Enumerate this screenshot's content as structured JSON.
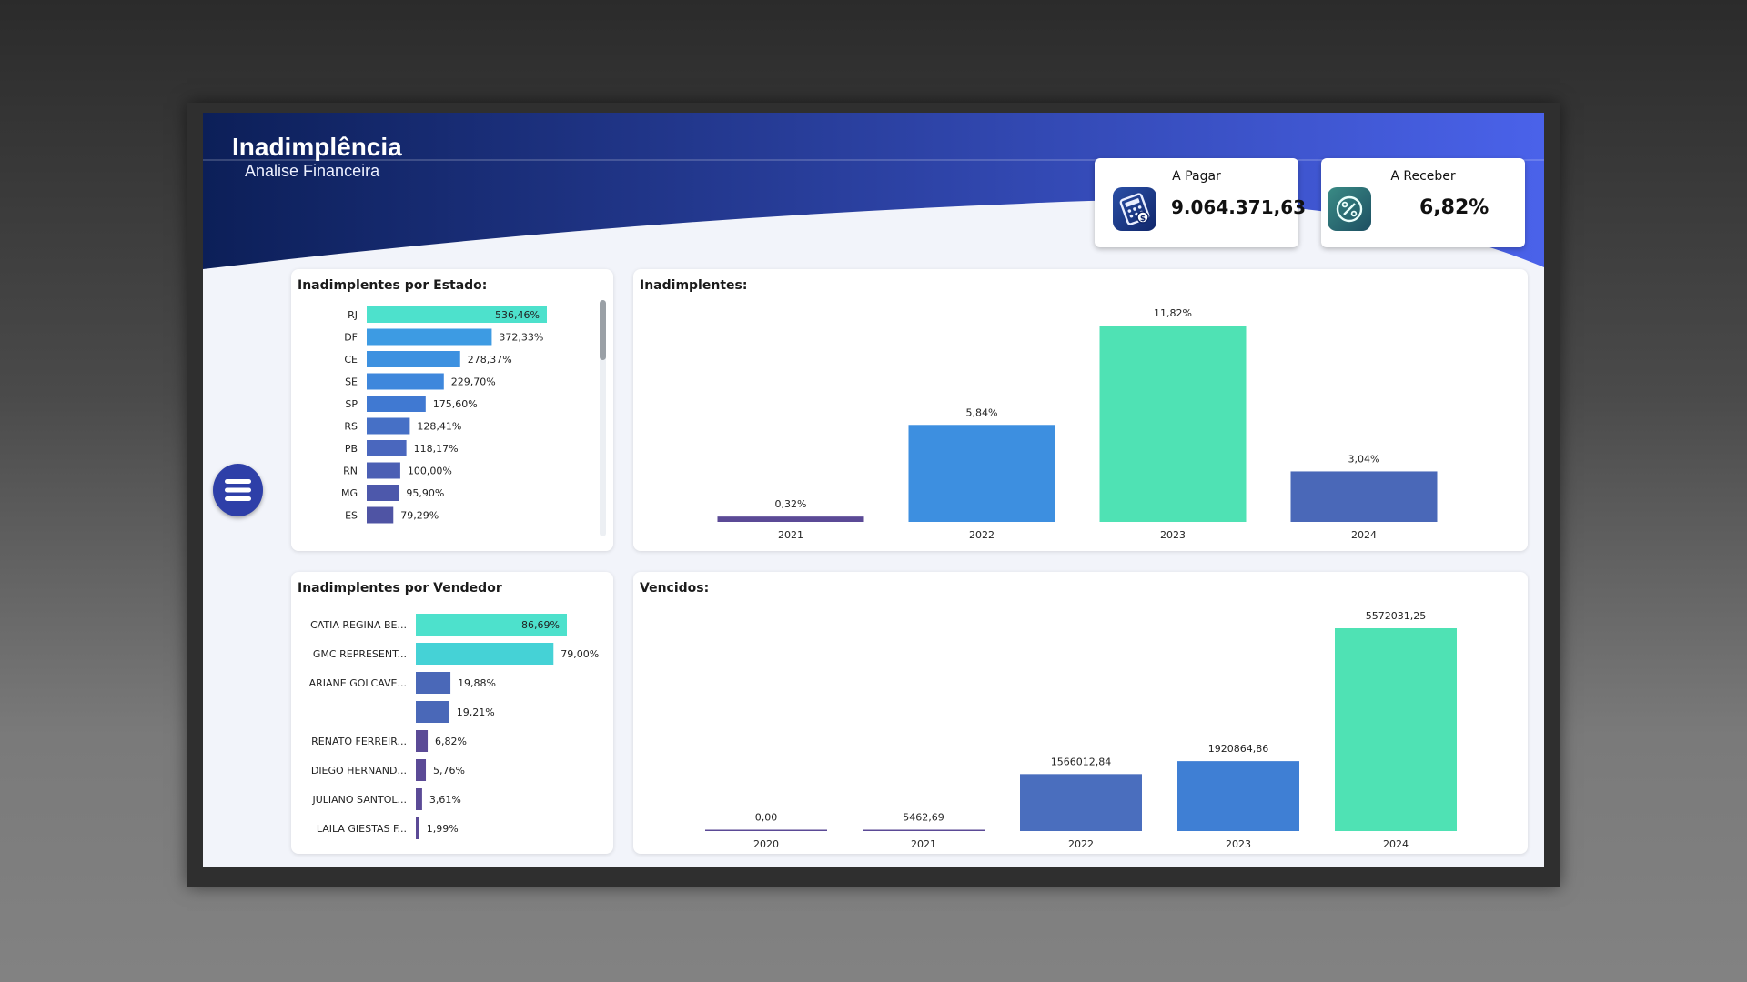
{
  "header": {
    "title": "Inadimplência",
    "subtitle": "Analise Financeira"
  },
  "kpis": {
    "a_pagar": {
      "label": "A Pagar",
      "value": "9.064.371,63",
      "icon": "calculator-icon"
    },
    "a_receber": {
      "label": "A Receber",
      "value": "6,82%",
      "icon": "percent-icon"
    }
  },
  "menu": {
    "icon": "hamburger-menu-icon"
  },
  "colors": {
    "header_dark": "#0c1f58",
    "header_light": "#4a62ea",
    "teal": "#4de1cc",
    "green": "#4fe2b4",
    "blue": "#3d8fe0",
    "indigo": "#4a68b8",
    "purple": "#5b4a96"
  },
  "cards": {
    "estado": {
      "title": "Inadimplentes por Estado:"
    },
    "anos": {
      "title": "Inadimplentes:"
    },
    "vendedor": {
      "title": "Inadimplentes por Vendedor"
    },
    "vencidos": {
      "title": "Vencidos:"
    }
  },
  "chart_data": [
    {
      "type": "bar",
      "orientation": "horizontal",
      "categories": [
        "RJ",
        "DF",
        "CE",
        "SE",
        "SP",
        "RS",
        "PB",
        "RN",
        "MG",
        "ES"
      ],
      "values": [
        536.46,
        372.33,
        278.37,
        229.7,
        175.6,
        128.41,
        118.17,
        100.0,
        95.9,
        79.29
      ],
      "labels": [
        "536,46%",
        "372,33%",
        "278,37%",
        "229,70%",
        "175,60%",
        "128,41%",
        "118,17%",
        "100,00%",
        "95,90%",
        "79,29%"
      ],
      "colors": [
        "#4de1cc",
        "#3d9be3",
        "#3d91e0",
        "#3e87dc",
        "#4079d2",
        "#4670c6",
        "#4a67be",
        "#4b5fb4",
        "#4d58ab",
        "#4f54a4"
      ]
    },
    {
      "type": "bar",
      "categories": [
        "2021",
        "2022",
        "2023",
        "2024"
      ],
      "values": [
        0.32,
        5.84,
        11.82,
        3.04
      ],
      "labels": [
        "0,32%",
        "5,84%",
        "11,82%",
        "3,04%"
      ],
      "colors": [
        "#5b4a96",
        "#3d8fe0",
        "#4fe2b4",
        "#4a68b8"
      ]
    },
    {
      "type": "bar",
      "orientation": "horizontal",
      "categories": [
        "CATIA REGINA BE...",
        "GMC REPRESENT...",
        "ARIANE GOLCAVE...",
        "",
        "RENATO FERREIR...",
        "DIEGO HERNAND...",
        "JULIANO SANTOL...",
        "LAILA GIESTAS F..."
      ],
      "values": [
        86.69,
        79.0,
        19.88,
        19.21,
        6.82,
        5.76,
        3.61,
        1.99
      ],
      "labels": [
        "86,69%",
        "79,00%",
        "19,88%",
        "19,21%",
        "6,82%",
        "5,76%",
        "3,61%",
        "1,99%"
      ],
      "colors": [
        "#4de1cc",
        "#45d2d6",
        "#4a68b8",
        "#4a68b8",
        "#5b4a96",
        "#5b4a96",
        "#5b4a96",
        "#5b4a96"
      ]
    },
    {
      "type": "bar",
      "categories": [
        "2020",
        "2021",
        "2022",
        "2023",
        "2024"
      ],
      "values": [
        0.0,
        5462.69,
        1566012.84,
        1920864.86,
        5572031.25
      ],
      "labels": [
        "0,00",
        "5462,69",
        "1566012,84",
        "1920864,86",
        "5572031,25"
      ],
      "colors": [
        "#5b4a96",
        "#5b4a96",
        "#4a6ebe",
        "#3f7fd4",
        "#4fe2b4"
      ]
    }
  ]
}
